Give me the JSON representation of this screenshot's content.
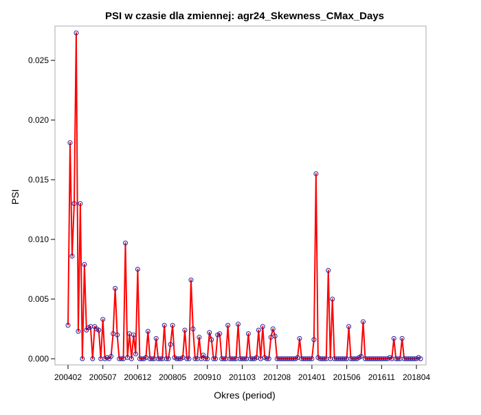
{
  "chart_data": {
    "type": "line",
    "title": "PSI w czasie dla zmiennej: agr24_Skewness_CMax_Days",
    "xlabel": "Okres (period)",
    "ylabel": "PSI",
    "ylim": [
      0,
      0.0275
    ],
    "yticks": [
      "0.000",
      "0.005",
      "0.010",
      "0.015",
      "0.020",
      "0.025"
    ],
    "ytick_values": [
      0,
      0.005,
      0.01,
      0.015,
      0.02,
      0.025
    ],
    "xticks": [
      "200402",
      "200507",
      "200612",
      "200805",
      "200910",
      "201103",
      "201208",
      "201401",
      "201506",
      "201611",
      "201804"
    ],
    "grid": false,
    "legend": "none",
    "colors": {
      "line": "#ff0000",
      "marker": "#1f1fa0",
      "frame": "#aaaaaa"
    },
    "x_start": "200402",
    "series": [
      {
        "values": [
          0.0028,
          0.0181,
          0.0086,
          0.013,
          0.0273,
          0.0023,
          0.013,
          0.0,
          0.0079,
          0.0024,
          0.0026,
          0.0027,
          0.0,
          0.0027,
          0.0025,
          0.0024,
          0.0,
          0.0033,
          0.0,
          0.0001,
          0.0,
          0.0002,
          0.0021,
          0.0059,
          0.002,
          0.0,
          0.0,
          0.0,
          0.0097,
          0.0001,
          0.0021,
          0.0,
          0.002,
          0.0004,
          0.0075,
          0.0,
          0.0,
          0.0,
          0.0001,
          0.0023,
          0.0,
          0.0,
          0.0,
          0.0017,
          0.0,
          0.0,
          0.0,
          0.0028,
          0.0,
          0.0,
          0.0012,
          0.0028,
          0.0001,
          0.0,
          0.0,
          0.0,
          0.0001,
          0.0024,
          0.0,
          0.0,
          0.0066,
          0.0025,
          0.0,
          0.0,
          0.0018,
          0.0,
          0.0003,
          0.0,
          0.0,
          0.0022,
          0.0016,
          0.0,
          0.0,
          0.002,
          0.0021,
          0.0,
          0.0,
          0.0,
          0.0028,
          0.0,
          0.0,
          0.0,
          0.0,
          0.0029,
          0.0,
          0.0,
          0.0,
          0.0,
          0.0021,
          0.0,
          0.0,
          0.0,
          0.0001,
          0.0024,
          0.0,
          0.0027,
          0.0001,
          0.0,
          0.0,
          0.0018,
          0.0025,
          0.0019,
          0.0,
          0.0,
          0.0,
          0.0,
          0.0,
          0.0,
          0.0,
          0.0,
          0.0,
          0.0,
          0.0001,
          0.0017,
          0.0,
          0.0,
          0.0,
          0.0,
          0.0,
          0.0,
          0.0016,
          0.0155,
          0.0001,
          0.0,
          0.0,
          0.0,
          0.0,
          0.0074,
          0.0,
          0.005,
          0.0,
          0.0,
          0.0,
          0.0,
          0.0,
          0.0,
          0.0,
          0.0027,
          0.0,
          0.0,
          0.0,
          0.0,
          0.0001,
          0.0002,
          0.0031,
          0.0,
          0.0,
          0.0,
          0.0,
          0.0,
          0.0,
          0.0,
          0.0,
          0.0,
          0.0,
          0.0,
          0.0,
          0.0001,
          0.0,
          0.0017,
          0.0,
          0.0,
          0.0,
          0.0017,
          0.0,
          0.0,
          0.0,
          0.0,
          0.0,
          0.0,
          0.0,
          0.0001,
          0.0
        ]
      }
    ]
  }
}
